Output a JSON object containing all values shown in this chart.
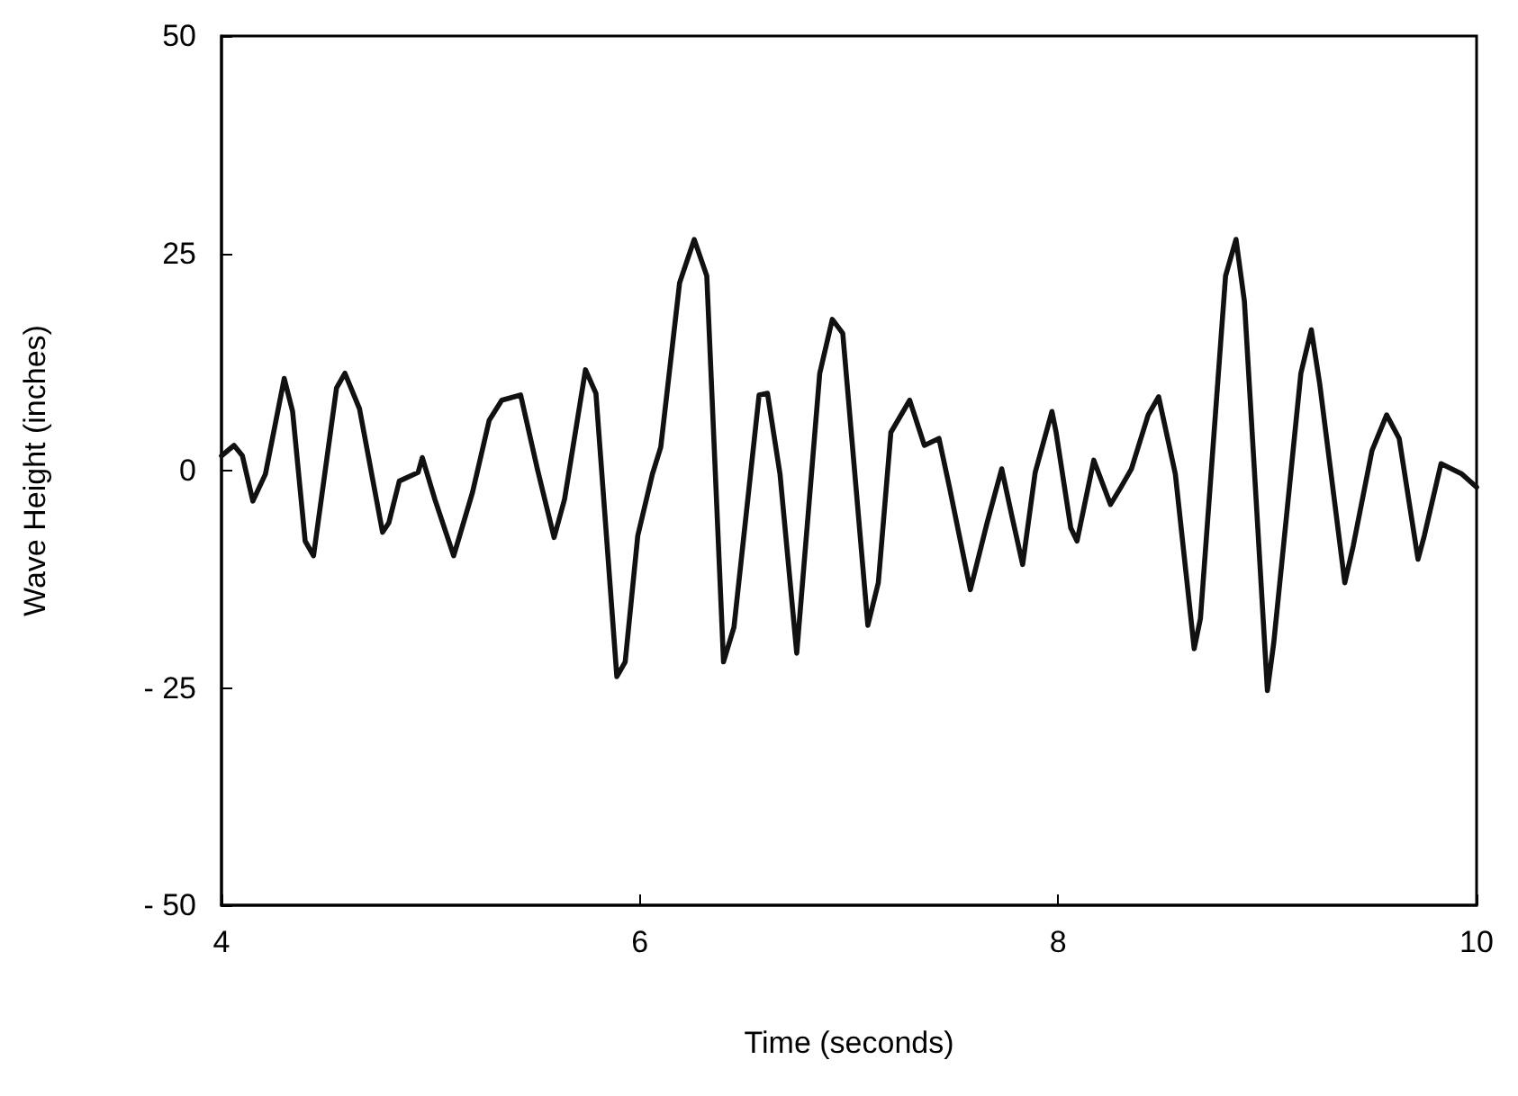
{
  "chart_data": {
    "type": "line",
    "xlabel": "Time (seconds)",
    "ylabel": "Wave Height (inches)",
    "xlim": [
      4,
      10
    ],
    "xticks": [
      4,
      6,
      8,
      10
    ],
    "ylim": [
      -50,
      50
    ],
    "yticks": [
      {
        "value": -50,
        "label": "- 50"
      },
      {
        "value": -25,
        "label": "- 25"
      },
      0,
      25,
      50
    ],
    "grid": false,
    "marker": "none",
    "line_style": "solid",
    "series": [
      {
        "color": "#111111",
        "x": [
          4.0,
          4.06,
          4.1,
          4.15,
          4.21,
          4.3,
          4.34,
          4.4,
          4.44,
          4.55,
          4.59,
          4.66,
          4.77,
          4.8,
          4.85,
          4.94,
          4.96,
          5.02,
          5.11,
          5.2,
          5.28,
          5.34,
          5.43,
          5.51,
          5.59,
          5.64,
          5.74,
          5.79,
          5.89,
          5.93,
          5.99,
          6.06,
          6.1,
          6.19,
          6.26,
          6.32,
          6.4,
          6.45,
          6.57,
          6.61,
          6.67,
          6.75,
          6.86,
          6.92,
          6.97,
          7.09,
          7.14,
          7.2,
          7.29,
          7.36,
          7.43,
          7.48,
          7.58,
          7.66,
          7.73,
          7.78,
          7.83,
          7.89,
          7.97,
          7.99,
          8.06,
          8.09,
          8.17,
          8.25,
          8.3,
          8.35,
          8.43,
          8.48,
          8.56,
          8.65,
          8.68,
          8.8,
          8.85,
          8.89,
          9.0,
          9.03,
          9.16,
          9.21,
          9.25,
          9.37,
          9.41,
          9.5,
          9.57,
          9.63,
          9.72,
          9.75,
          9.83,
          9.93,
          10.0
        ],
        "values": [
          1.7,
          2.9,
          1.7,
          -3.5,
          -0.4,
          10.6,
          6.8,
          -8.1,
          -9.8,
          9.5,
          11.2,
          7.1,
          -7.1,
          -6.0,
          -1.2,
          -0.2,
          1.5,
          -3.3,
          -9.8,
          -2.5,
          5.8,
          8.1,
          8.7,
          0.2,
          -7.7,
          -3.3,
          11.6,
          8.9,
          -23.7,
          -22.0,
          -7.5,
          -0.4,
          2.7,
          21.6,
          26.6,
          22.4,
          -22.0,
          -18.0,
          8.7,
          8.9,
          -0.4,
          -21.0,
          11.2,
          17.4,
          15.8,
          -17.8,
          -12.9,
          4.4,
          8.1,
          2.9,
          3.7,
          -1.9,
          -13.7,
          -6.0,
          0.2,
          -5.4,
          -10.8,
          -0.2,
          6.8,
          4.4,
          -6.6,
          -8.1,
          1.2,
          -3.9,
          -1.9,
          0.2,
          6.4,
          8.5,
          -0.4,
          -20.5,
          -17.0,
          22.4,
          26.6,
          19.5,
          -25.3,
          -19.9,
          11.2,
          16.2,
          10.0,
          -12.9,
          -8.7,
          2.3,
          6.4,
          3.7,
          -10.2,
          -7.5,
          0.8,
          -0.4,
          -1.9
        ]
      }
    ]
  }
}
